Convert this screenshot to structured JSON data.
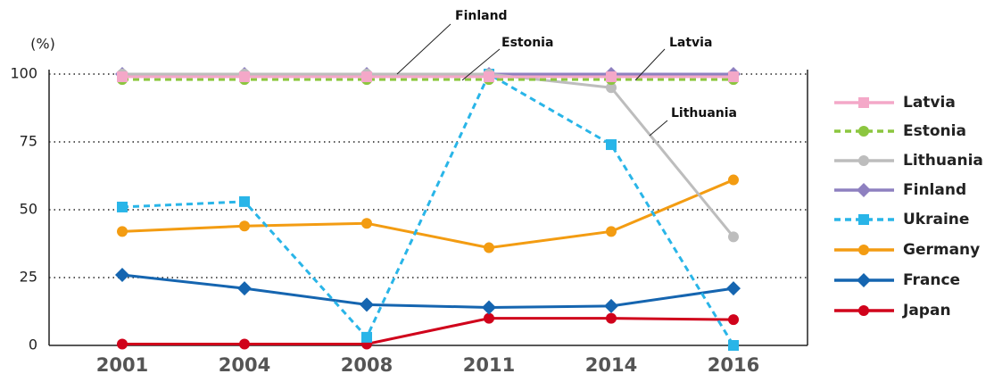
{
  "chart_data": {
    "type": "line",
    "y_label": "(%)",
    "categories": [
      "2001",
      "2004",
      "2008",
      "2011",
      "2014",
      "2016"
    ],
    "ylim": [
      0,
      100
    ],
    "yticks": [
      0,
      25,
      50,
      75,
      100
    ],
    "grid": true,
    "legend": "right",
    "series": [
      {
        "name": "Latvia",
        "color": "#f4a8c8",
        "marker": "square",
        "dash": false,
        "values": [
          99,
          99,
          99,
          99,
          99,
          99
        ]
      },
      {
        "name": "Estonia",
        "color": "#8cc63f",
        "marker": "circle",
        "dash": true,
        "values": [
          98,
          98,
          98,
          98,
          98,
          98
        ]
      },
      {
        "name": "Lithuania",
        "color": "#bdbdbd",
        "marker": "circle",
        "dash": false,
        "values": [
          100,
          100,
          100,
          100,
          95,
          40
        ]
      },
      {
        "name": "Finland",
        "color": "#8e80c0",
        "marker": "diamond",
        "dash": false,
        "values": [
          100,
          100,
          100,
          100,
          100,
          100
        ]
      },
      {
        "name": "Ukraine",
        "color": "#29b5e8",
        "marker": "square",
        "dash": true,
        "values": [
          51,
          53,
          3,
          100,
          74,
          0
        ]
      },
      {
        "name": "Germany",
        "color": "#f39c12",
        "marker": "circle",
        "dash": false,
        "values": [
          42,
          44,
          45,
          36,
          42,
          61
        ]
      },
      {
        "name": "France",
        "color": "#1565b0",
        "marker": "diamond",
        "dash": false,
        "values": [
          26,
          21,
          15,
          14,
          14.5,
          21
        ]
      },
      {
        "name": "Japan",
        "color": "#d0021b",
        "marker": "circle",
        "dash": false,
        "values": [
          0.5,
          0.5,
          0.5,
          10,
          10,
          9.5
        ]
      }
    ],
    "annotations": [
      "Finland",
      "Estonia",
      "Latvia",
      "Lithuania"
    ]
  }
}
